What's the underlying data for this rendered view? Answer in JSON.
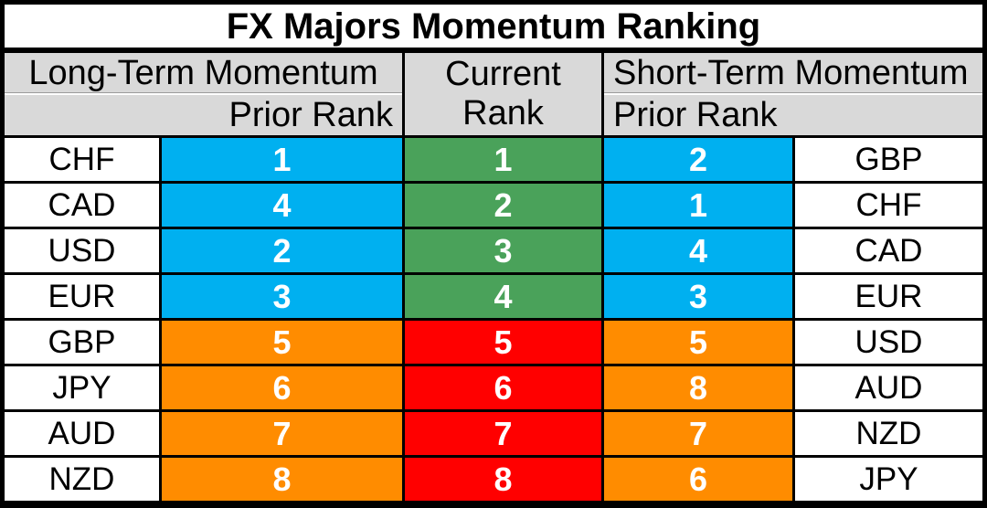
{
  "title": "FX Majors Momentum Ranking",
  "headers": {
    "long_term": "Long-Term Momentum",
    "long_term_sub": "Prior Rank",
    "current_line1": "Current",
    "current_line2": "Rank",
    "short_term": "Short-Term Momentum",
    "short_term_sub": "Prior Rank"
  },
  "colors": {
    "header_bg": "#d9d9d9",
    "border": "#000000",
    "top_tier_prior": "#00b0f0",
    "bottom_tier_prior": "#ff8c00",
    "top_tier_current": "#4aa25a",
    "bottom_tier_current": "#ff0000",
    "rank_text": "#ffffff",
    "label_text": "#000000"
  },
  "chart_data": {
    "type": "table",
    "title": "FX Majors Momentum Ranking",
    "columns": [
      "Long-Term Currency",
      "Long-Term Prior Rank",
      "Current Rank",
      "Short-Term Prior Rank",
      "Short-Term Currency"
    ],
    "rows": [
      [
        "CHF",
        "1",
        "1",
        "2",
        "GBP"
      ],
      [
        "CAD",
        "4",
        "2",
        "1",
        "CHF"
      ],
      [
        "USD",
        "2",
        "3",
        "4",
        "CAD"
      ],
      [
        "EUR",
        "3",
        "4",
        "3",
        "EUR"
      ],
      [
        "GBP",
        "5",
        "5",
        "5",
        "USD"
      ],
      [
        "JPY",
        "6",
        "6",
        "8",
        "AUD"
      ],
      [
        "AUD",
        "7",
        "7",
        "7",
        "NZD"
      ],
      [
        "NZD",
        "8",
        "8",
        "6",
        "JPY"
      ]
    ],
    "tiers": [
      "top",
      "top",
      "top",
      "top",
      "bottom",
      "bottom",
      "bottom",
      "bottom"
    ]
  }
}
